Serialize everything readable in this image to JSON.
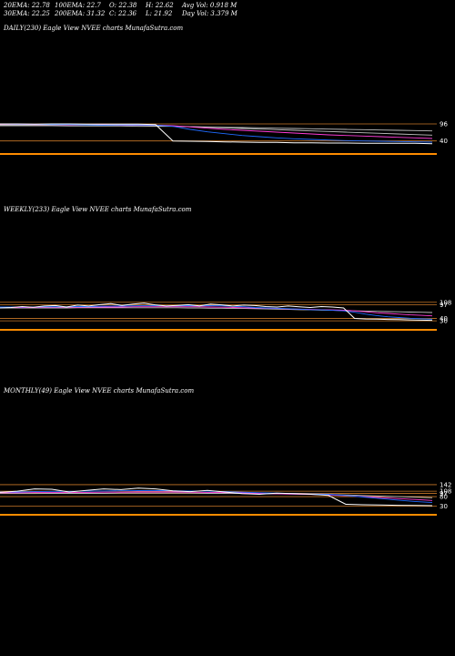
{
  "header": {
    "ema20": "20EMA: 22.78",
    "ema30": "30EMA: 22.25",
    "ema100": "100EMA: 22.7",
    "ema200": "200EMA: 31.32",
    "open": "O: 22.38",
    "close": "C: 22.36",
    "high": "H: 22.62",
    "low": "L: 21.92",
    "avg_vol": "Avg Vol: 0.918  M",
    "day_vol": "Day Vol: 3.379 M"
  },
  "colors": {
    "price": "#ffffff",
    "ema_fast": "#1f6bff",
    "ema_mid": "#ff3dd8",
    "ema_slow": "#c0c0c0",
    "level": "#c87828",
    "baseline": "#ff8c00"
  },
  "chart_data": [
    {
      "type": "line",
      "title": "DAILY(230) Eagle   View  NVEE charts MunafaSutra.com",
      "ticks": [
        "96",
        "40"
      ],
      "ylim": [
        0,
        120
      ],
      "levels": [
        96,
        40
      ],
      "series": [
        {
          "role": "price",
          "values": [
            96,
            96,
            95,
            96,
            96,
            95,
            95,
            95,
            95,
            94,
            40,
            39,
            38,
            37,
            36,
            35,
            35,
            34,
            34,
            33,
            33,
            32,
            32,
            32,
            32,
            31
          ]
        },
        {
          "role": "ema_fast",
          "values": [
            96,
            95,
            95,
            94,
            94,
            93,
            92,
            93,
            93,
            92,
            88,
            78,
            70,
            64,
            58,
            54,
            50,
            47,
            45,
            43,
            41,
            40,
            39,
            38,
            37,
            36
          ]
        },
        {
          "role": "ema_mid",
          "values": [
            95,
            95,
            94,
            94,
            93,
            93,
            93,
            92,
            92,
            92,
            90,
            86,
            82,
            78,
            75,
            72,
            69,
            66,
            63,
            60,
            58,
            56,
            54,
            52,
            50,
            48
          ]
        },
        {
          "role": "ema_slow",
          "values": [
            93,
            93,
            93,
            92,
            92,
            92,
            91,
            91,
            91,
            90,
            89,
            87,
            85,
            83,
            81,
            79,
            77,
            75,
            73,
            71,
            69,
            67,
            65,
            63,
            61,
            59
          ]
        },
        {
          "role": "ema_slow",
          "values": [
            90,
            90,
            90,
            90,
            89,
            89,
            89,
            89,
            88,
            88,
            88,
            87,
            86,
            85,
            84,
            83,
            82,
            81,
            80,
            79,
            78,
            77,
            76,
            75,
            74,
            73
          ]
        }
      ]
    },
    {
      "type": "line",
      "title": "WEEKLY(233) Eagle   View  NVEE charts MunafaSutra.com",
      "ticks": [
        "108",
        "97",
        "40",
        "30"
      ],
      "ylim": [
        0,
        130
      ],
      "levels": [
        108,
        97,
        40,
        30
      ],
      "series": [
        {
          "role": "price",
          "values": [
            84,
            86,
            90,
            87,
            92,
            94,
            88,
            96,
            92,
            98,
            102,
            95,
            100,
            104,
            97,
            92,
            95,
            98,
            93,
            100,
            97,
            92,
            96,
            94,
            90,
            88,
            92,
            89,
            86,
            90,
            88,
            84,
            40,
            38,
            37,
            36,
            35,
            34,
            33,
            32
          ]
        },
        {
          "role": "ema_fast",
          "values": [
            88,
            88,
            88,
            88,
            89,
            89,
            89,
            90,
            90,
            91,
            92,
            92,
            93,
            94,
            94,
            93,
            93,
            94,
            93,
            94,
            93,
            91,
            89,
            86,
            84,
            83,
            81,
            79,
            77,
            76,
            74,
            72,
            66,
            58,
            52,
            47,
            44,
            41,
            39,
            37
          ]
        },
        {
          "role": "ema_mid",
          "values": [
            86,
            86,
            86,
            86,
            87,
            87,
            87,
            87,
            88,
            88,
            88,
            88,
            89,
            89,
            89,
            89,
            89,
            89,
            89,
            88,
            87,
            86,
            85,
            84,
            83,
            82,
            80,
            79,
            78,
            77,
            76,
            75,
            72,
            68,
            64,
            61,
            58,
            55,
            53,
            51
          ]
        },
        {
          "role": "ema_slow",
          "values": [
            84,
            84,
            84,
            84,
            84,
            84,
            84,
            85,
            85,
            85,
            85,
            85,
            85,
            85,
            85,
            85,
            85,
            84,
            84,
            83,
            83,
            82,
            82,
            81,
            80,
            79,
            78,
            77,
            76,
            75,
            74,
            73,
            72,
            71,
            70,
            69,
            68,
            67,
            66,
            65
          ]
        }
      ]
    },
    {
      "type": "line",
      "title": "MONTHLY(49) Eagle   View  NVEE charts MunafaSutra.com",
      "ticks": [
        "142",
        "108",
        "97",
        "80",
        "30"
      ],
      "ylim": [
        0,
        170
      ],
      "levels": [
        142,
        108,
        97,
        80,
        30
      ],
      "series": [
        {
          "role": "price",
          "values": [
            102,
            108,
            120,
            118,
            104,
            112,
            120,
            116,
            124,
            120,
            110,
            106,
            112,
            104,
            96,
            92,
            98,
            96,
            92,
            86,
            40,
            38,
            37,
            35,
            34,
            33
          ]
        },
        {
          "role": "ema_fast",
          "values": [
            104,
            104,
            106,
            107,
            107,
            108,
            109,
            110,
            111,
            111,
            110,
            109,
            108,
            106,
            103,
            100,
            98,
            96,
            94,
            92,
            86,
            78,
            70,
            62,
            55,
            49
          ]
        },
        {
          "role": "ema_mid",
          "values": [
            100,
            100,
            101,
            102,
            102,
            102,
            103,
            103,
            104,
            104,
            104,
            103,
            102,
            101,
            99,
            97,
            95,
            93,
            91,
            89,
            85,
            80,
            75,
            70,
            65,
            60
          ]
        },
        {
          "role": "ema_slow",
          "values": [
            96,
            96,
            96,
            97,
            97,
            97,
            97,
            98,
            98,
            98,
            98,
            98,
            97,
            97,
            96,
            95,
            94,
            93,
            92,
            91,
            89,
            86,
            83,
            80,
            77,
            74
          ]
        }
      ]
    }
  ]
}
